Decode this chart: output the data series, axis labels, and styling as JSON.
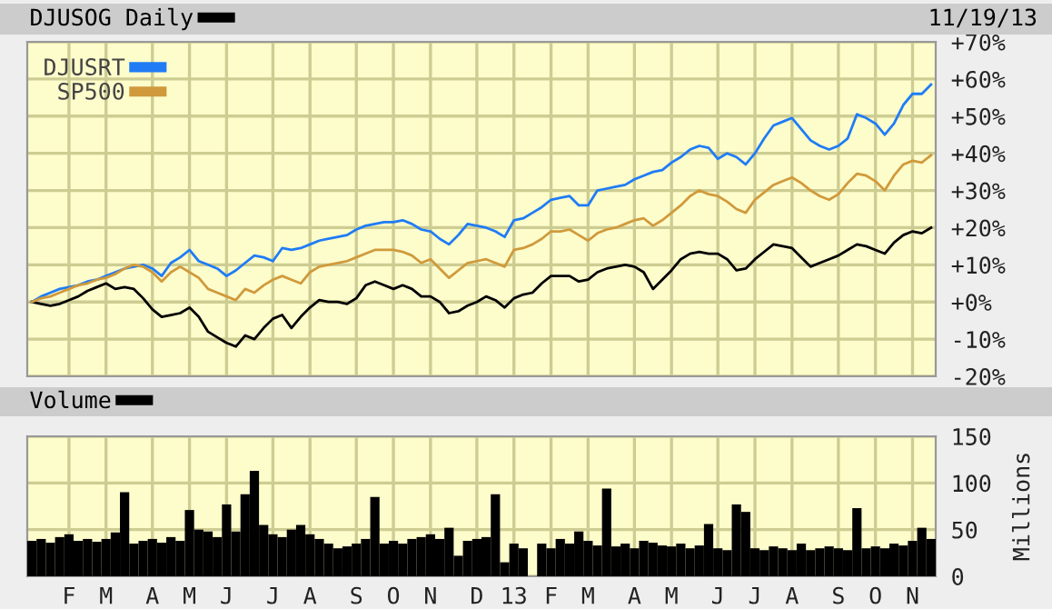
{
  "chart_data": [
    {
      "type": "line",
      "annotations": [
        "11/19/13"
      ],
      "legend": "top left",
      "grid": true,
      "tick_labels": "y",
      "categories": [
        null,
        null,
        null,
        null,
        null,
        null,
        null,
        null,
        null,
        null,
        null,
        null,
        null,
        null,
        null,
        null,
        null,
        null,
        null,
        null,
        null,
        null,
        null,
        null,
        null,
        null,
        null,
        null,
        null,
        null,
        null,
        null,
        null,
        null,
        null,
        null,
        null,
        null,
        null,
        null,
        null,
        null,
        null,
        null,
        null,
        null,
        null,
        null,
        null,
        null,
        null,
        null,
        null,
        null,
        null,
        null,
        null,
        null,
        null,
        null,
        null,
        null,
        null,
        null,
        null,
        null,
        null,
        null,
        null,
        null,
        null,
        null,
        null,
        null,
        null,
        null,
        null,
        null,
        null,
        null,
        null,
        null,
        null,
        null,
        null,
        null,
        null,
        null,
        null,
        null,
        null,
        null,
        null,
        null,
        null,
        null,
        null,
        null
      ],
      "ylim": [
        -20,
        70
      ],
      "yticks": [
        {
          "value": -20,
          "label": "-20%"
        },
        {
          "value": -10,
          "label": "-10%"
        },
        {
          "value": 0,
          "label": "+0%"
        },
        {
          "value": 10,
          "label": "+10%"
        },
        {
          "value": 20,
          "label": "+20%"
        },
        {
          "value": 30,
          "label": "+30%"
        },
        {
          "value": 40,
          "label": "+40%"
        },
        {
          "value": 50,
          "label": "+50%"
        },
        {
          "value": 60,
          "label": "+60%"
        },
        {
          "value": 70,
          "label": "+70%"
        }
      ],
      "series": [
        {
          "name": "DJUSOG Daily",
          "color": "#000000",
          "values": [
            0,
            -0.5,
            -1,
            -0.5,
            0.5,
            1.5,
            3,
            4,
            5,
            3.5,
            4,
            3.5,
            1,
            -2,
            -4,
            -3.5,
            -3,
            -1.5,
            -4,
            -8,
            -9.5,
            -11,
            -12,
            -9,
            -10,
            -7,
            -4.5,
            -3.5,
            -7,
            -4,
            -1.5,
            0.5,
            0,
            0,
            -0.5,
            1,
            4.5,
            5.5,
            4.5,
            3.5,
            4.5,
            3.5,
            1.5,
            1.5,
            0,
            -3,
            -2.5,
            -1,
            0,
            1.5,
            0.5,
            -1.5,
            1,
            2,
            2.5,
            5,
            7,
            7,
            7,
            5.5,
            6,
            8,
            9,
            9.5,
            10,
            9.5,
            8,
            3.5,
            6,
            8.5,
            11.5,
            13,
            13.5,
            13,
            13,
            11.5,
            8.5,
            9,
            11.5,
            13.5,
            15.5,
            15,
            14.5,
            12,
            9.5,
            10.5,
            11.5,
            12.5,
            14,
            15.5,
            15,
            14,
            13,
            16,
            18,
            19,
            18.5,
            20
          ]
        },
        {
          "name": "DJUSRT",
          "color": "#1f7cf5",
          "values": [
            0,
            1.5,
            2.5,
            3.5,
            4,
            4.5,
            5.5,
            6,
            7,
            8,
            9,
            9.5,
            10,
            9,
            7,
            10.5,
            12,
            14,
            11,
            10,
            9,
            7,
            8.5,
            10.5,
            12.5,
            12,
            11,
            14.5,
            14,
            14.5,
            15.5,
            16.5,
            17,
            17.5,
            18,
            19.5,
            20.5,
            21,
            21.5,
            21.5,
            22,
            21,
            19.5,
            19,
            17,
            15.5,
            18,
            21,
            20.5,
            20,
            19,
            17.5,
            22,
            22.5,
            24,
            25.5,
            27.5,
            28,
            28.5,
            26,
            26,
            30,
            30.5,
            31,
            31.5,
            33,
            34,
            35,
            35.5,
            37.5,
            39,
            41,
            42,
            41.5,
            38.5,
            40,
            39,
            37,
            40,
            44,
            47.5,
            48.5,
            49.5,
            46.5,
            43.5,
            42,
            41,
            42,
            44,
            50.5,
            49.5,
            48,
            45,
            48,
            53,
            56,
            56,
            58.5
          ]
        },
        {
          "name": "SP500",
          "color": "#d09a3c",
          "values": [
            0,
            1,
            1.5,
            2.5,
            3.5,
            4.5,
            5,
            6,
            6.5,
            7.5,
            9,
            10,
            9.5,
            8,
            5.5,
            8,
            9.5,
            8,
            6.5,
            3.5,
            2.5,
            1.5,
            0.5,
            3.5,
            2.5,
            4.5,
            6,
            7,
            6,
            5,
            8,
            9.5,
            10,
            10.5,
            11,
            12,
            13,
            14,
            14,
            14,
            13.5,
            12.5,
            10.5,
            11.5,
            9,
            6.5,
            8.5,
            10.5,
            11,
            11.5,
            10.5,
            9.5,
            14,
            14.5,
            15.5,
            17,
            19,
            19,
            19.5,
            18,
            16.5,
            18.5,
            19.5,
            20,
            21,
            22,
            22.5,
            20.5,
            22,
            24,
            26,
            28.5,
            30,
            29,
            28.5,
            27,
            25,
            24,
            27.5,
            29.5,
            31.5,
            32.5,
            33.5,
            32,
            30,
            28.5,
            27.5,
            29,
            32,
            34.5,
            34,
            32.5,
            30,
            34,
            37,
            38,
            37.5,
            39.5
          ]
        }
      ]
    },
    {
      "type": "bar",
      "legend": "top left",
      "grid": true,
      "ylabel": "Millions",
      "categories": [
        null,
        null,
        null,
        null,
        "F",
        null,
        null,
        null,
        "M",
        null,
        null,
        null,
        null,
        "A",
        null,
        null,
        null,
        "M",
        null,
        null,
        null,
        "J",
        null,
        null,
        null,
        null,
        "J",
        null,
        null,
        null,
        "A",
        null,
        null,
        null,
        null,
        "S",
        null,
        null,
        null,
        "O",
        null,
        null,
        null,
        "N",
        null,
        null,
        null,
        null,
        "D",
        null,
        null,
        null,
        "13",
        null,
        null,
        null,
        "F",
        null,
        null,
        null,
        "M",
        null,
        null,
        null,
        null,
        "A",
        null,
        null,
        null,
        "M",
        null,
        null,
        null,
        null,
        "J",
        null,
        null,
        null,
        "J",
        null,
        null,
        null,
        "A",
        null,
        null,
        null,
        null,
        "S",
        null,
        null,
        null,
        "O",
        null,
        null,
        null,
        "N",
        null,
        null
      ],
      "ylim": [
        0,
        150
      ],
      "yticks": [
        0,
        50,
        100,
        150
      ],
      "series": [
        {
          "name": "Volume",
          "color": "#000000",
          "values": [
            38,
            40,
            36,
            42,
            45,
            38,
            40,
            37,
            40,
            47,
            90,
            35,
            38,
            40,
            36,
            42,
            38,
            71,
            50,
            48,
            42,
            77,
            48,
            88,
            113,
            55,
            45,
            42,
            50,
            55,
            45,
            40,
            35,
            30,
            32,
            35,
            40,
            85,
            35,
            38,
            35,
            40,
            42,
            45,
            40,
            52,
            22,
            38,
            40,
            42,
            88,
            15,
            35,
            30,
            null,
            35,
            30,
            40,
            35,
            48,
            38,
            33,
            94,
            32,
            35,
            30,
            38,
            36,
            33,
            32,
            35,
            30,
            33,
            56,
            30,
            28,
            77,
            69,
            30,
            28,
            32,
            30,
            28,
            35,
            28,
            30,
            32,
            30,
            28,
            73,
            30,
            32,
            30,
            35,
            33,
            38,
            52,
            40
          ]
        }
      ]
    }
  ]
}
